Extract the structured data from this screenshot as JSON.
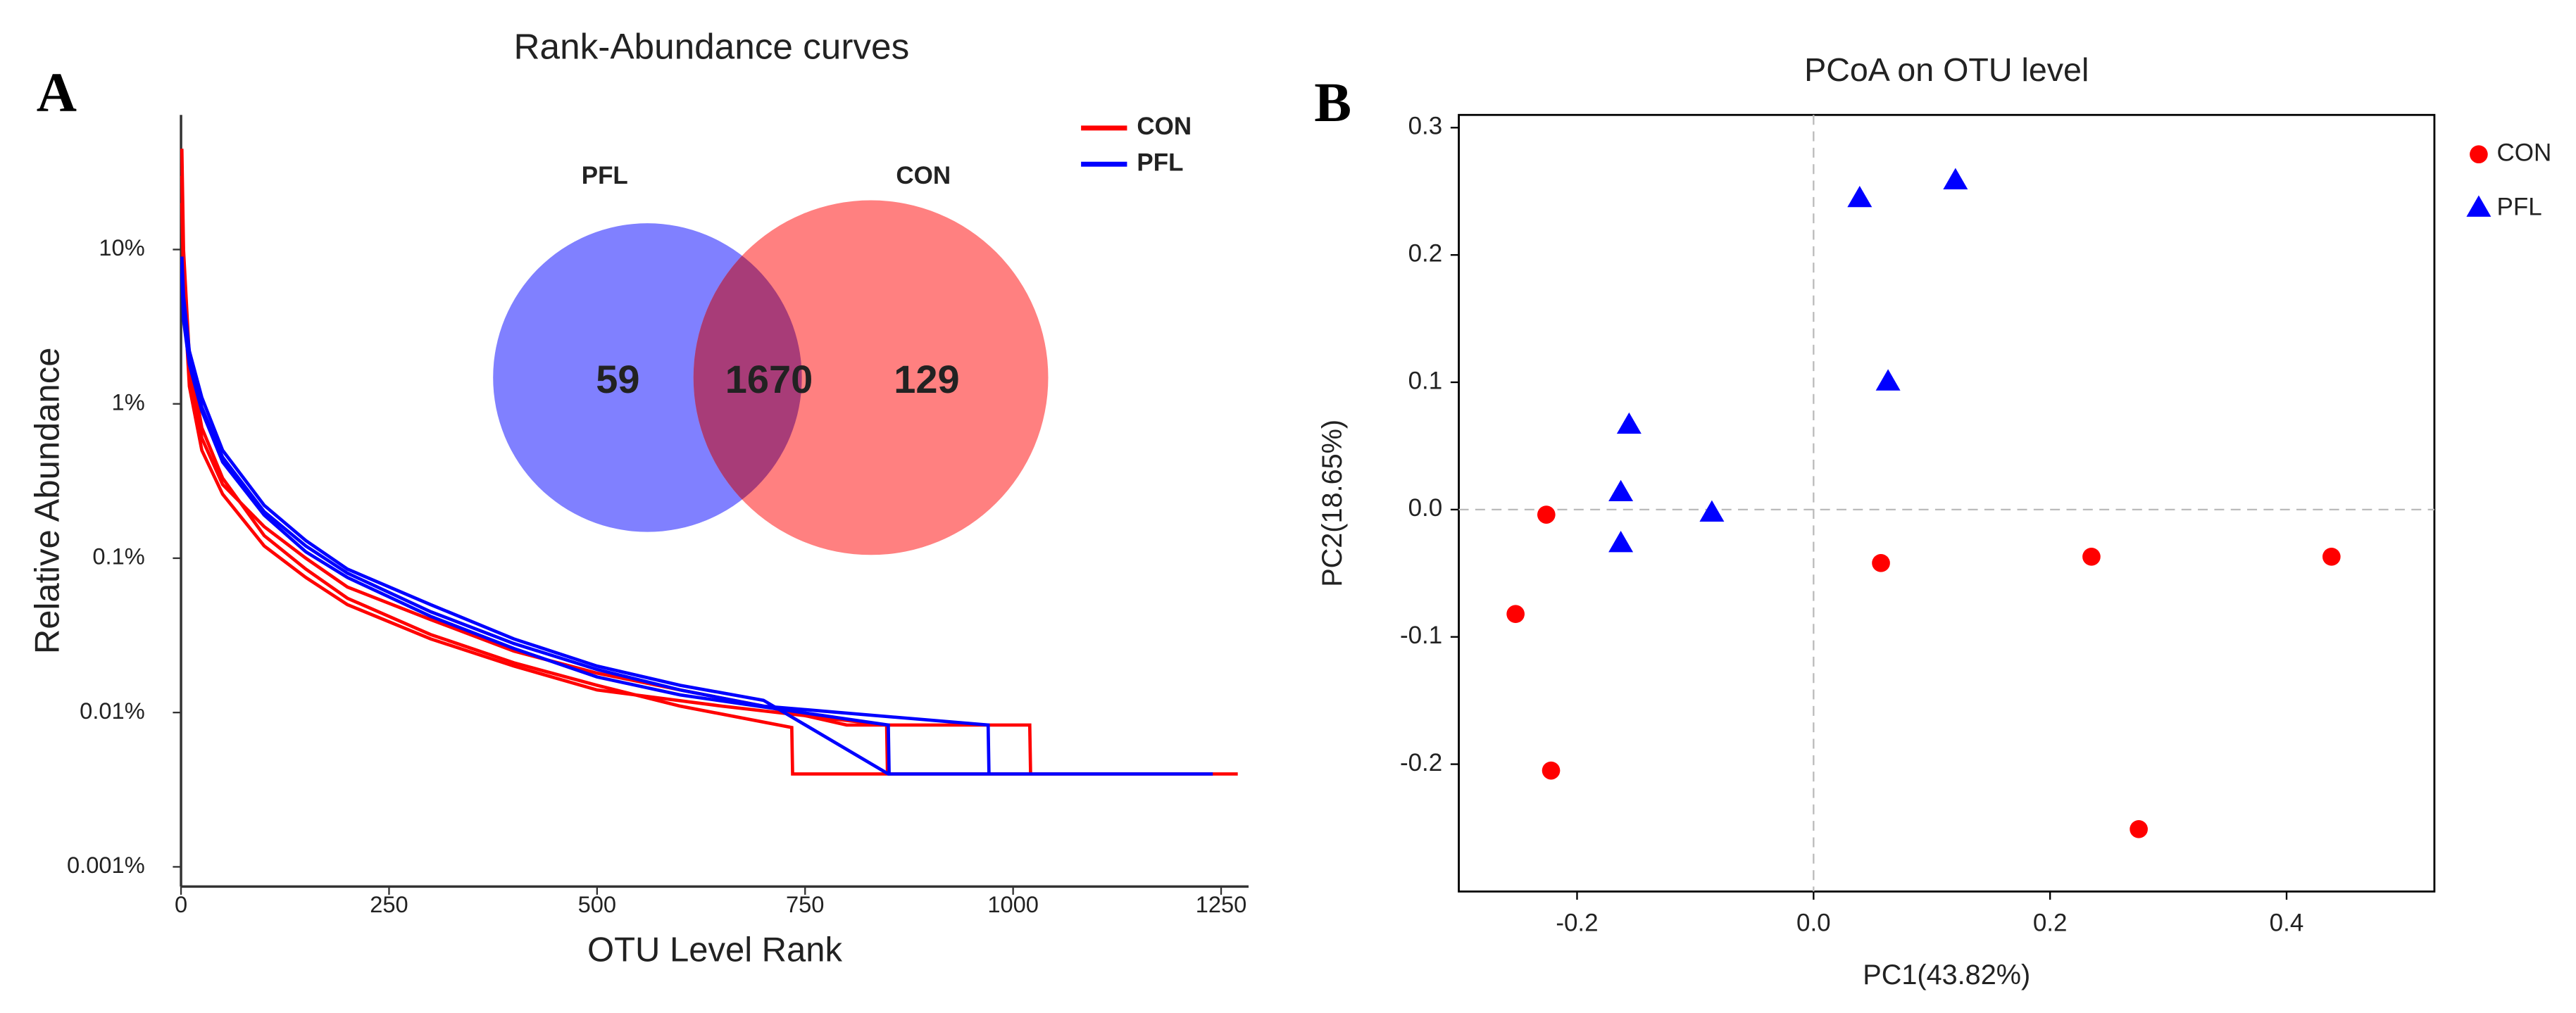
{
  "chart_data": [
    {
      "type": "rank_abundance",
      "panel": "A",
      "title": "Rank-Abundance curves",
      "x_label": "OTU Level Rank",
      "y_label": "Relative Abundance",
      "log_y": true,
      "xlim": [
        0,
        1283
      ],
      "ylim": [
        0.000745,
        74.5
      ],
      "xticks": [
        0,
        250,
        500,
        750,
        1000,
        1250
      ],
      "yticks": [
        {
          "value": 0.001,
          "label": "0.001%"
        },
        {
          "value": 0.01,
          "label": "0.01%"
        },
        {
          "value": 0.1,
          "label": "0.1%"
        },
        {
          "value": 1,
          "label": "1%"
        },
        {
          "value": 10,
          "label": "10%"
        }
      ],
      "legend": "upper right",
      "series": [
        {
          "name": "CON",
          "color": "#ff0000",
          "curves": [
            {
              "x": [
                1,
                3,
                10,
                25,
                50,
                100,
                150,
                200,
                300,
                400,
                500,
                600,
                734,
                735,
                1270
              ],
              "values": [
                45,
                10,
                2,
                0.7,
                0.33,
                0.14,
                0.085,
                0.055,
                0.032,
                0.021,
                0.015,
                0.011,
                0.008,
                0.004,
                0.004
              ]
            },
            {
              "x": [
                1,
                3,
                10,
                25,
                50,
                100,
                150,
                200,
                300,
                400,
                500,
                600,
                700,
                800,
                1020,
                1021
              ],
              "values": [
                30,
                8,
                1.6,
                0.6,
                0.3,
                0.16,
                0.1,
                0.065,
                0.04,
                0.025,
                0.018,
                0.014,
                0.011,
                0.0083,
                0.0083,
                0.004
              ]
            },
            {
              "x": [
                1,
                3,
                10,
                25,
                50,
                100,
                150,
                200,
                300,
                400,
                500,
                650,
                848,
                849
              ],
              "values": [
                20,
                6,
                1.3,
                0.5,
                0.26,
                0.12,
                0.075,
                0.05,
                0.03,
                0.02,
                0.014,
                0.011,
                0.0083,
                0.004
              ]
            }
          ]
        },
        {
          "name": "PFL",
          "color": "#0000ff",
          "curves": [
            {
              "x": [
                1,
                3,
                10,
                25,
                50,
                100,
                150,
                200,
                300,
                400,
                500,
                600,
                700,
                850,
                1240
              ],
              "values": [
                9,
                5,
                2.2,
                1.1,
                0.5,
                0.22,
                0.13,
                0.085,
                0.05,
                0.03,
                0.02,
                0.015,
                0.012,
                0.004,
                0.004
              ]
            },
            {
              "x": [
                1,
                3,
                10,
                25,
                50,
                100,
                150,
                200,
                300,
                400,
                500,
                600,
                700,
                970,
                971
              ],
              "values": [
                8,
                4,
                2,
                0.95,
                0.45,
                0.2,
                0.12,
                0.08,
                0.045,
                0.028,
                0.019,
                0.014,
                0.011,
                0.0083,
                0.004
              ]
            },
            {
              "x": [
                1,
                3,
                10,
                25,
                50,
                100,
                150,
                200,
                300,
                400,
                500,
                600,
                850,
                851
              ],
              "values": [
                7,
                3.5,
                1.8,
                0.9,
                0.42,
                0.19,
                0.11,
                0.075,
                0.042,
                0.026,
                0.017,
                0.013,
                0.0083,
                0.004
              ]
            }
          ]
        }
      ],
      "venn": {
        "sets": [
          {
            "name": "PFL",
            "color": "#8080ff"
          },
          {
            "name": "CON",
            "color": "#ff8080"
          }
        ],
        "only_left": 59,
        "both": 1670,
        "only_right": 129
      }
    },
    {
      "type": "scatter",
      "panel": "B",
      "title": "PCoA on OTU level",
      "x_label": "PC1(43.82%)",
      "y_label": "PC2(18.65%)",
      "xlim": [
        -0.3,
        0.525
      ],
      "ylim": [
        -0.3,
        0.31
      ],
      "xticks": [
        -0.2,
        {
          "value": 0,
          "label": "0.0"
        },
        0.2,
        0.4
      ],
      "yticks": [
        -0.2,
        -0.1,
        {
          "value": 0,
          "label": "0.0"
        },
        0.1,
        0.2,
        0.3
      ],
      "legend": "upper right",
      "series": [
        {
          "name": "CON",
          "color": "#ff0000",
          "marker": "circle",
          "x": [
            -0.226,
            -0.252,
            -0.222,
            0.057,
            0.235,
            0.438,
            0.275
          ],
          "values": [
            -0.004,
            -0.082,
            -0.205,
            -0.042,
            -0.037,
            -0.037,
            -0.251
          ]
        },
        {
          "name": "PFL",
          "color": "#0000ff",
          "marker": "triangle",
          "x": [
            0.039,
            0.12,
            0.063,
            -0.156,
            -0.163,
            -0.163,
            -0.086
          ],
          "values": [
            0.244,
            0.258,
            0.1,
            0.066,
            0.013,
            -0.027,
            -0.003
          ]
        }
      ]
    }
  ]
}
